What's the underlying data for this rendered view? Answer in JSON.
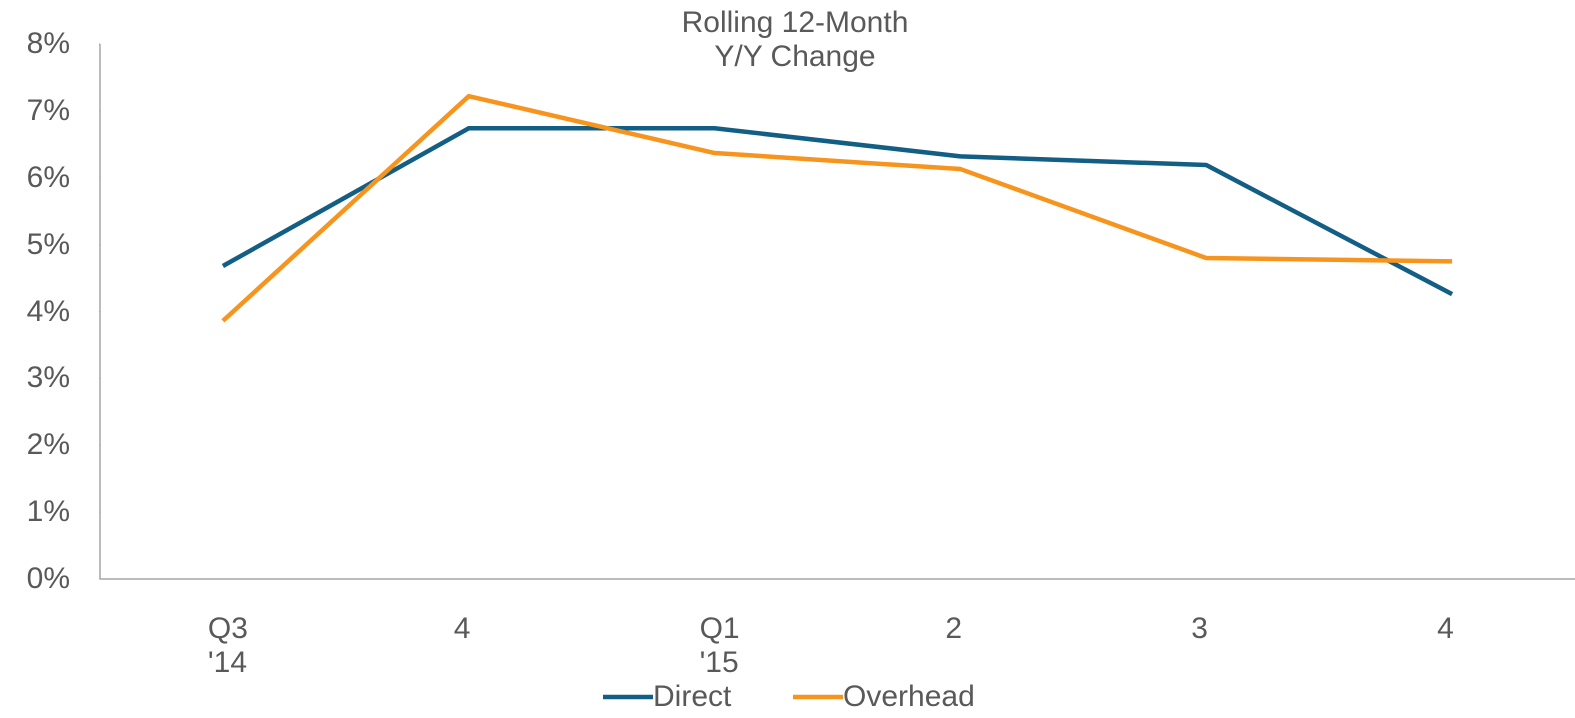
{
  "chart_data": {
    "type": "line",
    "title": "Rolling 12-Month\nY/Y Change",
    "categories": [
      "Q3\n'14",
      "4",
      "Q1\n'15",
      "2",
      "3",
      "4"
    ],
    "series": [
      {
        "name": "Direct",
        "color": "#135e85",
        "values": [
          4.68,
          6.74,
          6.74,
          6.32,
          6.19,
          4.26
        ]
      },
      {
        "name": "Overhead",
        "color": "#f7941d",
        "values": [
          3.86,
          7.22,
          6.37,
          6.13,
          4.8,
          4.75
        ]
      }
    ],
    "ylim": [
      0,
      8
    ],
    "yticks": [
      {
        "value": 0,
        "label": "0%"
      },
      {
        "value": 1,
        "label": "1%"
      },
      {
        "value": 2,
        "label": "2%"
      },
      {
        "value": 3,
        "label": "3%"
      },
      {
        "value": 4,
        "label": "4%"
      },
      {
        "value": 5,
        "label": "5%"
      },
      {
        "value": 6,
        "label": "6%"
      },
      {
        "value": 7,
        "label": "7%"
      },
      {
        "value": 8,
        "label": "8%"
      }
    ],
    "legend": "bottom"
  }
}
